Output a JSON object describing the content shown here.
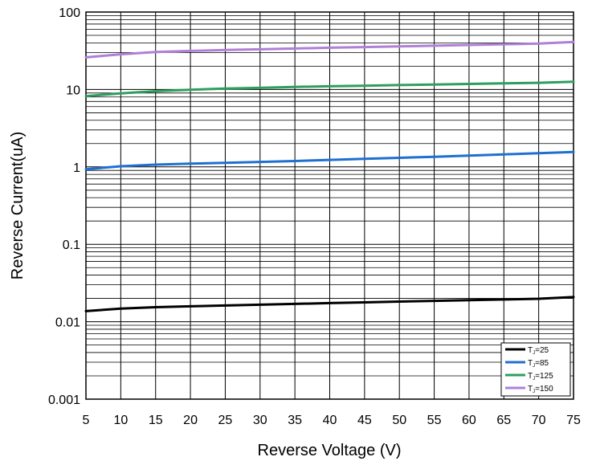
{
  "chart_data": {
    "type": "line",
    "title": "",
    "xlabel": "Reverse Voltage (V)",
    "ylabel": "Reverse Current(uA)",
    "xlim": [
      5,
      75
    ],
    "ylim": [
      0.001,
      100
    ],
    "yscale": "log",
    "grid": true,
    "legend_position": "bottom-right",
    "xticks": [
      "5",
      "10",
      "15",
      "20",
      "25",
      "30",
      "35",
      "40",
      "45",
      "50",
      "55",
      "60",
      "65",
      "70",
      "75"
    ],
    "yticks": [
      "0.001",
      "0.01",
      "0.1",
      "1",
      "10",
      "100"
    ],
    "x": [
      5,
      10,
      15,
      20,
      25,
      30,
      35,
      40,
      45,
      50,
      55,
      60,
      65,
      70,
      75
    ],
    "series": [
      {
        "name": "25",
        "legend_prefix": "T",
        "legend_sub": "J",
        "legend_suffix": "=25",
        "color": "#000000",
        "values": [
          0.0137,
          0.0148,
          0.0154,
          0.0158,
          0.0162,
          0.0166,
          0.017,
          0.0174,
          0.0178,
          0.0182,
          0.0186,
          0.019,
          0.0194,
          0.0198,
          0.0208
        ]
      },
      {
        "name": "85",
        "legend_prefix": "T",
        "legend_sub": "J",
        "legend_suffix": "=85",
        "color": "#1f6fd1",
        "values": [
          0.93,
          1.02,
          1.07,
          1.1,
          1.13,
          1.16,
          1.19,
          1.23,
          1.27,
          1.31,
          1.35,
          1.4,
          1.45,
          1.5,
          1.56
        ]
      },
      {
        "name": "125",
        "legend_prefix": "T",
        "legend_sub": "J",
        "legend_suffix": "=125",
        "color": "#2e9e5e",
        "values": [
          8.2,
          8.9,
          9.5,
          9.9,
          10.3,
          10.5,
          10.8,
          11.0,
          11.2,
          11.4,
          11.6,
          11.8,
          12.0,
          12.2,
          12.6
        ]
      },
      {
        "name": "150",
        "legend_prefix": "T",
        "legend_sub": "J",
        "legend_suffix": "=150",
        "color": "#b07fd8",
        "values": [
          26.0,
          28.5,
          30.5,
          31.5,
          32.3,
          33.0,
          33.8,
          34.6,
          35.3,
          36.0,
          36.8,
          37.6,
          38.4,
          39.2,
          41.0
        ]
      }
    ]
  }
}
